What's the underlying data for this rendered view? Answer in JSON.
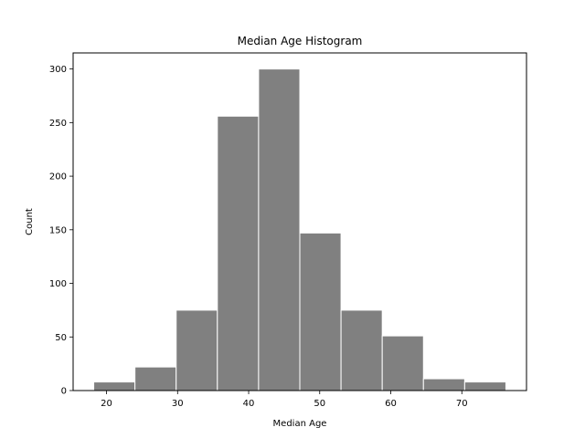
{
  "chart_data": {
    "type": "bar",
    "title": "Median Age Histogram",
    "xlabel": "Median Age",
    "ylabel": "Count",
    "bins": [
      {
        "start": 18.2,
        "end": 24.0,
        "count": 8
      },
      {
        "start": 24.0,
        "end": 29.8,
        "count": 22
      },
      {
        "start": 29.8,
        "end": 35.6,
        "count": 75
      },
      {
        "start": 35.6,
        "end": 41.4,
        "count": 256
      },
      {
        "start": 41.4,
        "end": 47.2,
        "count": 300
      },
      {
        "start": 47.2,
        "end": 53.0,
        "count": 147
      },
      {
        "start": 53.0,
        "end": 58.8,
        "count": 75
      },
      {
        "start": 58.8,
        "end": 64.6,
        "count": 51
      },
      {
        "start": 64.6,
        "end": 70.4,
        "count": 11
      },
      {
        "start": 70.4,
        "end": 76.2,
        "count": 8
      }
    ],
    "xlim": [
      15.3,
      79.1
    ],
    "ylim": [
      0,
      315
    ],
    "xticks": [
      20,
      30,
      40,
      50,
      60,
      70
    ],
    "yticks": [
      0,
      50,
      100,
      150,
      200,
      250,
      300
    ],
    "grid": false,
    "bar_color": "#808080",
    "edge_color": "#ffffff"
  }
}
